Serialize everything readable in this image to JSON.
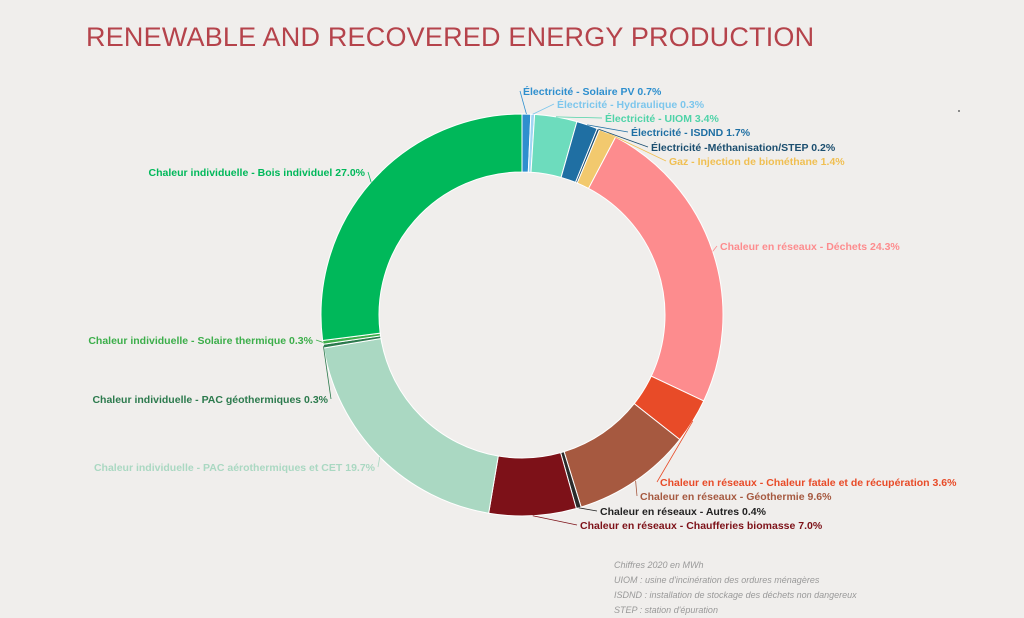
{
  "title": "RENEWABLE AND RECOVERED ENERGY PRODUCTION",
  "chart_data": {
    "type": "pie",
    "style": "donut",
    "title": "RENEWABLE AND RECOVERED ENERGY PRODUCTION",
    "unit": "%",
    "slices": [
      {
        "label": "Électricité - Solaire PV",
        "value": 0.7,
        "color": "#2e8fce",
        "text": "Électricité - Solaire PV 0.7%"
      },
      {
        "label": "Électricité - Hydraulique",
        "value": 0.3,
        "color": "#9fd6f3",
        "text": "Électricité - Hydraulique 0.3%"
      },
      {
        "label": "Électricité - UIOM",
        "value": 3.4,
        "color": "#6ddcbd",
        "text": "Électricité - UIOM 3.4%"
      },
      {
        "label": "Électricité - ISDND",
        "value": 1.7,
        "color": "#1f6fa3",
        "text": "Électricité - ISDND 1.7%"
      },
      {
        "label": "Électricité -Méthanisation/STEP",
        "value": 0.2,
        "color": "#1b4e6f",
        "text": "Électricité -Méthanisation/STEP 0.2%"
      },
      {
        "label": "Gaz - Injection de biométhane",
        "value": 1.4,
        "color": "#f2c96e",
        "text": "Gaz - Injection de biométhane 1.4%"
      },
      {
        "label": "Chaleur en réseaux - Déchets",
        "value": 24.3,
        "color": "#fd8c8e",
        "text": "Chaleur en réseaux - Déchets 24.3%"
      },
      {
        "label": "Chaleur en réseaux - Chaleur fatale et de récupération",
        "value": 3.6,
        "color": "#e84b28",
        "text": "Chaleur en réseaux - Chaleur fatale et de récupération 3.6%"
      },
      {
        "label": "Chaleur en réseaux - Géothermie",
        "value": 9.6,
        "color": "#a65940",
        "text": "Chaleur en réseaux - Géothermie 9.6%"
      },
      {
        "label": "Chaleur en réseaux - Autres",
        "value": 0.4,
        "color": "#2b2b2b",
        "text": "Chaleur en réseaux - Autres 0.4%"
      },
      {
        "label": "Chaleur en réseaux - Chaufferies biomasse",
        "value": 7.0,
        "color": "#7d1118",
        "text": "Chaleur en réseaux - Chaufferies biomasse 7.0%"
      },
      {
        "label": "Chaleur individuelle - PAC aérothermiques et CET",
        "value": 19.7,
        "color": "#aad8c2",
        "text": "Chaleur individuelle - PAC aérothermiques et CET 19.7%"
      },
      {
        "label": "Chaleur individuelle - PAC géothermiques",
        "value": 0.3,
        "color": "#2c7a4d",
        "text": "Chaleur individuelle - PAC géothermiques 0.3%"
      },
      {
        "label": "Chaleur individuelle - Solaire thermique",
        "value": 0.3,
        "color": "#3cae4a",
        "text": "Chaleur individuelle - Solaire thermique 0.3%"
      },
      {
        "label": "Chaleur individuelle - Bois individuel",
        "value": 27.0,
        "color": "#00b85a",
        "text": "Chaleur individuelle - Bois individuel 27.0%"
      }
    ]
  },
  "notes": {
    "line1": "Chiffres 2020 en MWh",
    "line2": "UIOM : usine d'incinération des ordures ménagères",
    "line3": "ISDND : installation de stockage des déchets non dangereux",
    "line4": "STEP : station d'épuration"
  }
}
